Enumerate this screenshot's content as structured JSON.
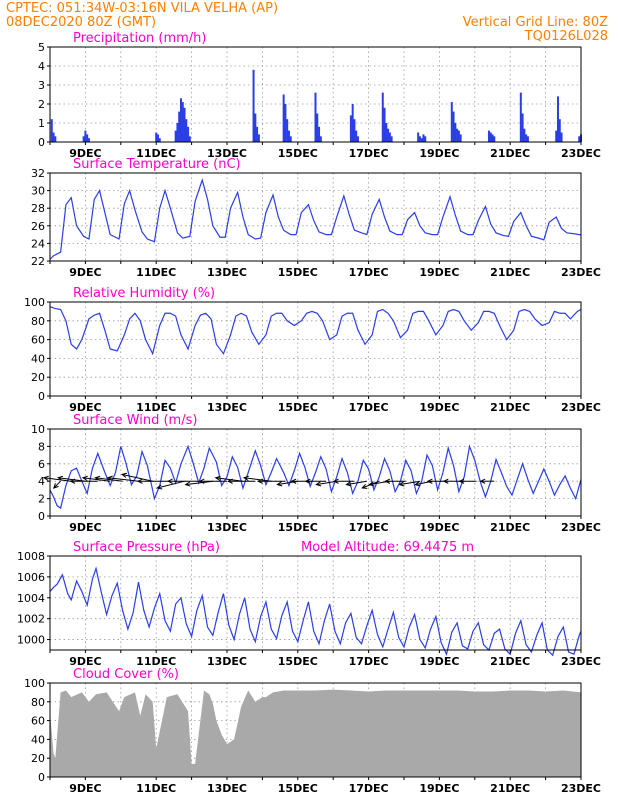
{
  "header": {
    "line1": "CPTEC:   051:34W-03:16N   VILA VELHA (AP)",
    "line2": "08DEC2020 80Z (GMT)",
    "right1": "Vertical Grid Line: 80Z",
    "right2": "TQ0126L028"
  },
  "colors": {
    "header": "#ff7f00",
    "title": "#ff00cc",
    "series": "#2a3ee6",
    "bars": "#2a3ee6",
    "cloud": "#a9a9a9",
    "grid": "#9a9a9a",
    "arrows": "#000000"
  },
  "time_axis": {
    "start_day": 8,
    "end_day": 23,
    "label_days": [
      9,
      11,
      13,
      15,
      17,
      19,
      21,
      23
    ],
    "labels": [
      "9DEC",
      "11DEC",
      "13DEC",
      "15DEC",
      "17DEC",
      "19DEC",
      "21DEC",
      "23DEC"
    ]
  },
  "chart_data": [
    {
      "type": "bar",
      "title": "Precipitation (mm/h)",
      "ylim": [
        0,
        5
      ],
      "yticks": [
        0,
        1,
        2,
        3,
        4,
        5
      ],
      "grid": true,
      "x": [
        8.05,
        8.1,
        8.15,
        8.95,
        9.0,
        9.05,
        9.1,
        11.0,
        11.05,
        11.1,
        11.55,
        11.6,
        11.65,
        11.7,
        11.75,
        11.8,
        11.85,
        11.9,
        11.95,
        13.75,
        13.8,
        13.85,
        13.9,
        14.6,
        14.65,
        14.7,
        14.75,
        14.8,
        15.5,
        15.55,
        15.6,
        15.65,
        16.5,
        16.55,
        16.6,
        16.65,
        16.7,
        17.4,
        17.45,
        17.5,
        17.55,
        17.6,
        17.65,
        18.4,
        18.45,
        18.5,
        18.55,
        18.6,
        19.35,
        19.4,
        19.45,
        19.5,
        19.55,
        19.6,
        20.4,
        20.45,
        20.5,
        20.55,
        21.3,
        21.35,
        21.4,
        21.45,
        21.5,
        22.3,
        22.35,
        22.4,
        22.45,
        22.95,
        23.0
      ],
      "values": [
        1.2,
        0.5,
        0.3,
        0.3,
        0.6,
        0.4,
        0.2,
        0.5,
        0.4,
        0.2,
        0.6,
        1.0,
        1.6,
        2.3,
        2.1,
        1.8,
        1.2,
        0.8,
        0.3,
        3.8,
        1.5,
        0.8,
        0.4,
        2.5,
        2.0,
        1.2,
        0.6,
        0.3,
        2.6,
        1.5,
        0.8,
        0.3,
        1.4,
        2.0,
        1.2,
        0.6,
        0.3,
        2.6,
        1.8,
        1.0,
        0.7,
        0.5,
        0.3,
        0.5,
        0.3,
        0.2,
        0.4,
        0.3,
        2.1,
        1.6,
        1.0,
        0.7,
        0.6,
        0.4,
        0.6,
        0.5,
        0.4,
        0.3,
        2.6,
        1.5,
        0.7,
        0.4,
        0.3,
        0.6,
        2.4,
        1.2,
        0.5,
        0.3,
        0.4
      ]
    },
    {
      "type": "line",
      "title": "Surface Temperature (nC)",
      "ylim": [
        22,
        32
      ],
      "yticks": [
        22,
        24,
        26,
        28,
        30,
        32
      ],
      "grid": true,
      "x": [
        8.0,
        8.1,
        8.3,
        8.45,
        8.6,
        8.75,
        8.95,
        9.1,
        9.25,
        9.4,
        9.55,
        9.7,
        9.95,
        10.1,
        10.25,
        10.4,
        10.6,
        10.75,
        10.95,
        11.1,
        11.25,
        11.4,
        11.6,
        11.75,
        11.95,
        12.1,
        12.3,
        12.45,
        12.6,
        12.8,
        12.95,
        13.1,
        13.3,
        13.45,
        13.6,
        13.8,
        13.95,
        14.1,
        14.3,
        14.45,
        14.6,
        14.8,
        14.95,
        15.1,
        15.3,
        15.45,
        15.6,
        15.8,
        15.95,
        16.1,
        16.3,
        16.45,
        16.6,
        16.8,
        16.95,
        17.1,
        17.3,
        17.45,
        17.6,
        17.8,
        17.95,
        18.1,
        18.3,
        18.45,
        18.6,
        18.8,
        18.95,
        19.1,
        19.3,
        19.45,
        19.6,
        19.8,
        19.95,
        20.1,
        20.3,
        20.45,
        20.6,
        20.8,
        20.95,
        21.1,
        21.3,
        21.45,
        21.6,
        21.8,
        21.95,
        22.1,
        22.3,
        22.45,
        22.6,
        22.8,
        22.95,
        23.0
      ],
      "values": [
        22.2,
        22.6,
        23.0,
        28.4,
        29.2,
        26.0,
        24.8,
        24.5,
        29.0,
        30.0,
        27.5,
        25.0,
        24.5,
        28.5,
        30.0,
        27.8,
        25.3,
        24.5,
        24.2,
        28.0,
        30.0,
        28.0,
        25.2,
        24.6,
        24.8,
        28.8,
        31.2,
        29.0,
        26.0,
        24.7,
        24.7,
        28.0,
        29.8,
        27.0,
        25.0,
        24.5,
        24.6,
        27.5,
        29.5,
        27.0,
        25.5,
        25.0,
        25.0,
        27.5,
        28.4,
        26.6,
        25.3,
        25.0,
        25.0,
        27.0,
        29.4,
        27.3,
        25.5,
        25.2,
        25.0,
        27.3,
        29.0,
        27.0,
        25.4,
        25.0,
        25.0,
        26.7,
        27.5,
        26.0,
        25.2,
        25.0,
        25.0,
        27.0,
        29.3,
        27.2,
        25.4,
        25.0,
        25.0,
        26.6,
        28.2,
        26.2,
        25.2,
        24.9,
        24.8,
        26.5,
        27.5,
        26.0,
        24.8,
        24.6,
        24.4,
        26.4,
        27.0,
        25.7,
        25.2,
        25.1,
        25.0,
        25.0
      ]
    },
    {
      "type": "line",
      "title": "Relative Humidity (%)",
      "ylim": [
        0,
        100
      ],
      "yticks": [
        0,
        20,
        40,
        60,
        80,
        100
      ],
      "grid": true,
      "x": [
        8.0,
        8.15,
        8.3,
        8.45,
        8.6,
        8.75,
        8.9,
        9.1,
        9.25,
        9.4,
        9.55,
        9.7,
        9.9,
        10.1,
        10.25,
        10.4,
        10.55,
        10.7,
        10.9,
        11.1,
        11.25,
        11.4,
        11.55,
        11.7,
        11.9,
        12.1,
        12.25,
        12.4,
        12.55,
        12.7,
        12.9,
        13.1,
        13.25,
        13.4,
        13.55,
        13.7,
        13.9,
        14.1,
        14.25,
        14.4,
        14.55,
        14.7,
        14.9,
        15.1,
        15.25,
        15.4,
        15.55,
        15.7,
        15.9,
        16.1,
        16.25,
        16.4,
        16.55,
        16.7,
        16.9,
        17.1,
        17.25,
        17.4,
        17.55,
        17.7,
        17.9,
        18.1,
        18.25,
        18.4,
        18.55,
        18.7,
        18.9,
        19.1,
        19.25,
        19.4,
        19.55,
        19.7,
        19.9,
        20.1,
        20.25,
        20.4,
        20.55,
        20.7,
        20.9,
        21.1,
        21.25,
        21.4,
        21.55,
        21.7,
        21.9,
        22.1,
        22.25,
        22.4,
        22.55,
        22.7,
        22.9,
        23.0
      ],
      "values": [
        95,
        93,
        92,
        80,
        55,
        50,
        60,
        82,
        86,
        88,
        70,
        50,
        48,
        65,
        82,
        88,
        80,
        60,
        45,
        75,
        88,
        88,
        85,
        65,
        50,
        75,
        86,
        88,
        82,
        55,
        45,
        65,
        85,
        88,
        85,
        68,
        55,
        65,
        85,
        88,
        88,
        80,
        75,
        80,
        88,
        90,
        88,
        80,
        60,
        65,
        85,
        88,
        88,
        70,
        55,
        65,
        90,
        92,
        88,
        80,
        62,
        70,
        88,
        90,
        90,
        80,
        65,
        75,
        90,
        92,
        90,
        80,
        70,
        78,
        90,
        90,
        88,
        75,
        60,
        70,
        90,
        92,
        90,
        82,
        75,
        78,
        90,
        88,
        88,
        82,
        90,
        92
      ]
    },
    {
      "type": "line",
      "title": "Surface Wind (m/s)",
      "ylim": [
        0,
        10
      ],
      "yticks": [
        0,
        2,
        4,
        6,
        8,
        10
      ],
      "grid": true,
      "x": [
        8.0,
        8.1,
        8.2,
        8.3,
        8.45,
        8.6,
        8.75,
        8.9,
        9.05,
        9.2,
        9.35,
        9.55,
        9.7,
        9.85,
        10.0,
        10.15,
        10.3,
        10.45,
        10.6,
        10.75,
        10.95,
        11.1,
        11.25,
        11.4,
        11.55,
        11.7,
        11.9,
        12.05,
        12.2,
        12.35,
        12.5,
        12.7,
        12.85,
        13.0,
        13.15,
        13.3,
        13.45,
        13.6,
        13.8,
        13.95,
        14.1,
        14.25,
        14.4,
        14.6,
        14.75,
        14.9,
        15.05,
        15.2,
        15.35,
        15.5,
        15.65,
        15.8,
        15.95,
        16.1,
        16.25,
        16.4,
        16.55,
        16.7,
        16.85,
        17.0,
        17.15,
        17.3,
        17.45,
        17.6,
        17.75,
        17.9,
        18.05,
        18.2,
        18.35,
        18.5,
        18.65,
        18.8,
        18.95,
        19.1,
        19.25,
        19.4,
        19.55,
        19.7,
        19.85,
        20.0,
        20.15,
        20.3,
        20.45,
        20.6,
        20.75,
        20.9,
        21.05,
        21.2,
        21.35,
        21.5,
        21.65,
        21.8,
        21.95,
        22.1,
        22.25,
        22.4,
        22.55,
        22.7,
        22.85,
        23.0
      ],
      "values": [
        3.0,
        2.2,
        1.2,
        0.9,
        3.5,
        5.2,
        5.5,
        4.0,
        2.6,
        5.5,
        7.2,
        5.0,
        3.5,
        5.0,
        8.0,
        6.0,
        3.6,
        4.6,
        7.4,
        5.8,
        2.0,
        3.5,
        6.4,
        5.5,
        3.8,
        6.0,
        8.0,
        6.0,
        3.8,
        5.5,
        7.8,
        6.2,
        3.5,
        4.5,
        6.8,
        5.6,
        3.2,
        5.0,
        7.5,
        5.8,
        3.6,
        5.0,
        6.6,
        5.0,
        3.5,
        5.2,
        7.2,
        5.6,
        3.4,
        5.0,
        6.8,
        5.4,
        2.8,
        4.5,
        6.6,
        5.0,
        2.6,
        4.0,
        6.4,
        5.4,
        3.0,
        4.5,
        6.6,
        5.2,
        2.8,
        4.0,
        6.4,
        5.2,
        2.6,
        4.0,
        7.0,
        5.8,
        3.0,
        5.0,
        7.8,
        5.8,
        2.8,
        4.5,
        8.0,
        6.4,
        4.0,
        2.2,
        4.0,
        6.5,
        5.0,
        3.4,
        2.4,
        4.2,
        6.0,
        4.2,
        2.6,
        4.0,
        5.4,
        4.0,
        2.4,
        3.6,
        4.6,
        3.2,
        2.0,
        4.2
      ],
      "arrows_x": [
        8.3,
        8.6,
        9.0,
        9.35,
        9.7,
        10.05,
        10.5,
        10.9,
        11.35,
        11.8,
        12.2,
        12.6,
        13.0,
        13.45,
        13.8,
        14.25,
        14.65,
        15.0,
        15.4,
        15.8,
        16.1,
        16.6,
        16.95,
        17.3,
        17.6,
        18.05,
        18.45,
        18.8,
        19.25,
        19.7,
        20.05,
        20.55
      ],
      "arrows_u": [
        -1.0,
        -4.0,
        -4.0,
        -4.0,
        -4.0,
        -4.0,
        -4.5,
        -4.5,
        -4.5,
        -4.0,
        -4.5,
        -4.0,
        -4.0,
        -4.0,
        -4.0,
        -4.0,
        -4.0,
        -3.0,
        -3.0,
        -3.0,
        -3.0,
        -3.0,
        -3.0,
        -2.5,
        -3.0,
        -3.0,
        -3.0,
        -2.5,
        -3.0,
        -3.0,
        -2.5,
        -2.0
      ],
      "arrows_v": [
        -1.0,
        0.5,
        0.5,
        0.0,
        0.5,
        0.5,
        0.5,
        1.0,
        0.0,
        -1.0,
        0.0,
        -0.5,
        0.0,
        0.5,
        0.0,
        0.5,
        0.0,
        -0.5,
        0.0,
        0.0,
        -0.5,
        0.0,
        -0.5,
        -1.0,
        -0.5,
        0.0,
        -0.5,
        -0.5,
        0.0,
        0.0,
        0.0,
        0.0
      ]
    },
    {
      "type": "line",
      "title": "Surface Pressure (hPa)",
      "annotation": "Model Altitude: 69.4475 m",
      "ylim": [
        999,
        1008
      ],
      "yticks": [
        1000,
        1002,
        1004,
        1006,
        1008
      ],
      "grid": true,
      "x": [
        8.0,
        8.1,
        8.2,
        8.35,
        8.5,
        8.6,
        8.75,
        8.9,
        9.05,
        9.2,
        9.3,
        9.45,
        9.6,
        9.75,
        9.9,
        10.05,
        10.2,
        10.35,
        10.5,
        10.65,
        10.8,
        10.95,
        11.1,
        11.25,
        11.4,
        11.55,
        11.7,
        11.85,
        12.0,
        12.15,
        12.3,
        12.45,
        12.6,
        12.75,
        12.9,
        13.05,
        13.2,
        13.35,
        13.5,
        13.65,
        13.8,
        13.95,
        14.1,
        14.25,
        14.4,
        14.55,
        14.7,
        14.85,
        15.0,
        15.15,
        15.3,
        15.45,
        15.6,
        15.75,
        15.9,
        16.05,
        16.2,
        16.35,
        16.5,
        16.65,
        16.8,
        16.95,
        17.1,
        17.25,
        17.4,
        17.55,
        17.7,
        17.85,
        18.0,
        18.15,
        18.3,
        18.45,
        18.6,
        18.75,
        18.9,
        19.05,
        19.2,
        19.35,
        19.5,
        19.65,
        19.8,
        19.95,
        20.1,
        20.25,
        20.4,
        20.55,
        20.7,
        20.85,
        21.0,
        21.15,
        21.3,
        21.45,
        21.6,
        21.75,
        21.9,
        22.05,
        22.2,
        22.35,
        22.5,
        22.65,
        22.8,
        22.95,
        23.0
      ],
      "values": [
        1004.6,
        1005.0,
        1005.3,
        1006.2,
        1004.4,
        1003.8,
        1005.6,
        1004.6,
        1003.3,
        1005.8,
        1006.8,
        1004.5,
        1002.4,
        1004.2,
        1005.4,
        1002.8,
        1001.0,
        1002.6,
        1005.5,
        1002.8,
        1001.2,
        1003.0,
        1004.4,
        1001.8,
        1000.8,
        1003.4,
        1004.0,
        1001.5,
        1000.3,
        1002.8,
        1004.2,
        1001.2,
        1000.4,
        1002.6,
        1004.4,
        1001.4,
        1000.0,
        1002.4,
        1004.0,
        1001.0,
        999.8,
        1002.2,
        1003.6,
        1001.0,
        1000.1,
        1002.3,
        1003.6,
        1000.8,
        999.8,
        1001.8,
        1003.6,
        1000.8,
        999.6,
        1001.8,
        1003.4,
        1000.8,
        999.6,
        1001.6,
        1002.5,
        1000.2,
        999.6,
        1001.3,
        1002.8,
        1000.5,
        999.3,
        1001.0,
        1002.6,
        1000.2,
        999.3,
        1001.2,
        1002.4,
        1000.0,
        999.2,
        1001.0,
        1002.2,
        999.7,
        998.6,
        1000.7,
        1001.6,
        999.4,
        999.1,
        1000.8,
        1001.6,
        999.5,
        999.0,
        1000.6,
        1001.0,
        999.1,
        998.6,
        1000.6,
        1001.8,
        999.5,
        998.8,
        1000.4,
        1001.6,
        999.0,
        998.5,
        1000.3,
        1001.2,
        998.8,
        998.6,
        1000.4,
        1000.8
      ]
    },
    {
      "type": "area",
      "title": "Cloud Cover (%)",
      "ylim": [
        0,
        100
      ],
      "yticks": [
        0,
        20,
        40,
        60,
        80,
        100
      ],
      "grid": true,
      "x": [
        8.0,
        8.1,
        8.15,
        8.3,
        8.45,
        8.6,
        8.9,
        9.1,
        9.3,
        9.6,
        9.95,
        10.1,
        10.4,
        10.55,
        10.7,
        10.9,
        11.0,
        11.3,
        11.6,
        11.9,
        12.0,
        12.1,
        12.35,
        12.5,
        12.6,
        12.7,
        12.85,
        13.0,
        13.2,
        13.4,
        13.6,
        13.8,
        14.0,
        14.1,
        14.3,
        14.6,
        15.0,
        15.5,
        16.0,
        16.5,
        17.0,
        17.5,
        18.0,
        18.5,
        19.0,
        19.5,
        20.0,
        20.5,
        21.0,
        21.5,
        22.0,
        22.5,
        23.0
      ],
      "values": [
        70,
        25,
        20,
        90,
        92,
        85,
        90,
        80,
        88,
        90,
        70,
        85,
        90,
        65,
        88,
        80,
        30,
        85,
        88,
        70,
        14,
        14,
        92,
        88,
        78,
        60,
        45,
        35,
        40,
        75,
        92,
        80,
        85,
        85,
        90,
        92,
        92,
        92,
        93,
        92,
        91,
        92,
        92,
        92,
        92,
        92,
        91,
        91,
        92,
        92,
        91,
        92,
        90
      ]
    }
  ]
}
